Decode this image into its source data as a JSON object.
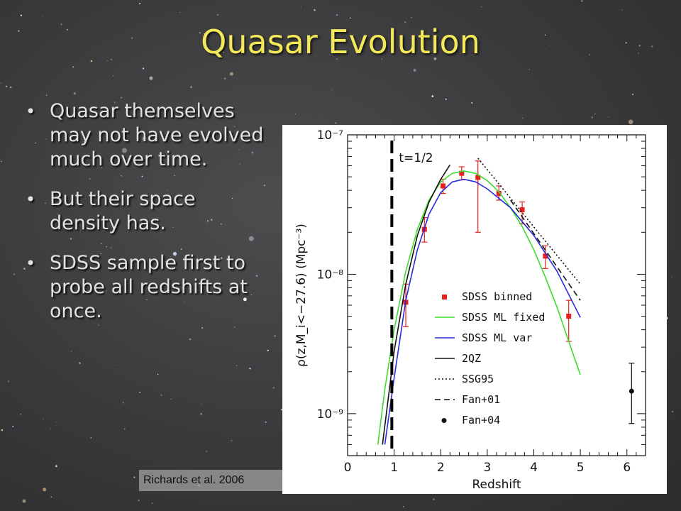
{
  "slide": {
    "title": "Quasar Evolution",
    "bullets": [
      "Quasar themselves may not have evolved much over time.",
      "But their space density has.",
      "SDSS sample first to probe all redshifts at once."
    ],
    "bullet_glyph": "•",
    "citation": "Richards et al. 2006",
    "colors": {
      "title": "#f2e85a",
      "text": "#e2e2e2",
      "sdss_binned": "#e8201c",
      "ml_fixed": "#3ddc2e",
      "ml_var": "#2a2ad8"
    }
  },
  "chart_data": {
    "type": "line",
    "xlabel": "Redshift",
    "ylabel": "ρ(z,M_i<−27.6)  (Mpc⁻³)",
    "xlim": [
      0,
      6.4
    ],
    "ylim": [
      5e-10,
      1e-07
    ],
    "yscale": "log",
    "x_ticks": [
      "0",
      "1",
      "2",
      "3",
      "4",
      "5",
      "6"
    ],
    "y_ticks": [
      {
        "value": 1e-07,
        "label": "10⁻⁷"
      },
      {
        "value": 1e-08,
        "label": "10⁻⁸"
      },
      {
        "value": 1e-09,
        "label": "10⁻⁹"
      }
    ],
    "annotation": {
      "label": "t=1/2",
      "x": 0.95
    },
    "legend_position": "bottom-right",
    "series": [
      {
        "name": "SDSS binned",
        "style": "points-errorbars",
        "color": "#e8201c",
        "points": [
          {
            "x": 1.25,
            "y": 6.3e-09,
            "lo": 4.2e-09,
            "hi": 8.5e-09
          },
          {
            "x": 1.65,
            "y": 2.1e-08,
            "lo": 1.7e-08,
            "hi": 2.55e-08
          },
          {
            "x": 2.05,
            "y": 4.3e-08,
            "lo": 3.8e-08,
            "hi": 4.8e-08
          },
          {
            "x": 2.45,
            "y": 5.3e-08,
            "lo": 4.75e-08,
            "hi": 5.9e-08
          },
          {
            "x": 2.8,
            "y": 4.95e-08,
            "lo": 2e-08,
            "hi": 6.5e-08
          },
          {
            "x": 3.25,
            "y": 3.8e-08,
            "lo": 3.4e-08,
            "hi": 4.3e-08
          },
          {
            "x": 3.75,
            "y": 2.9e-08,
            "lo": 2.3e-08,
            "hi": 3.3e-08
          },
          {
            "x": 4.25,
            "y": 1.35e-08,
            "lo": 1.1e-08,
            "hi": 1.6e-08
          },
          {
            "x": 4.75,
            "y": 5e-09,
            "lo": 3.3e-09,
            "hi": 6.5e-09
          }
        ]
      },
      {
        "name": "SDSS ML fixed",
        "style": "solid",
        "color": "#3ddc2e",
        "points": [
          [
            0.65,
            6e-10
          ],
          [
            0.8,
            1.5e-09
          ],
          [
            1.0,
            4e-09
          ],
          [
            1.25,
            1.05e-08
          ],
          [
            1.5,
            2.1e-08
          ],
          [
            1.75,
            3.4e-08
          ],
          [
            2.0,
            4.6e-08
          ],
          [
            2.25,
            5.3e-08
          ],
          [
            2.5,
            5.5e-08
          ],
          [
            2.75,
            5.3e-08
          ],
          [
            3.0,
            4.7e-08
          ],
          [
            3.25,
            3.9e-08
          ],
          [
            3.5,
            3e-08
          ],
          [
            3.75,
            2.2e-08
          ],
          [
            4.0,
            1.5e-08
          ],
          [
            4.25,
            9.5e-09
          ],
          [
            4.5,
            5.8e-09
          ],
          [
            4.75,
            3.3e-09
          ],
          [
            5.0,
            1.9e-09
          ]
        ]
      },
      {
        "name": "SDSS ML var",
        "style": "solid",
        "color": "#2a2ad8",
        "points": [
          [
            0.8,
            6e-10
          ],
          [
            1.0,
            1.8e-09
          ],
          [
            1.25,
            6.5e-09
          ],
          [
            1.5,
            1.5e-08
          ],
          [
            1.75,
            2.7e-08
          ],
          [
            2.0,
            3.85e-08
          ],
          [
            2.25,
            4.6e-08
          ],
          [
            2.5,
            4.8e-08
          ],
          [
            2.75,
            4.6e-08
          ],
          [
            3.0,
            4.1e-08
          ],
          [
            3.5,
            3e-08
          ],
          [
            4.0,
            1.9e-08
          ],
          [
            4.5,
            1.05e-08
          ],
          [
            5.0,
            4.9e-09
          ]
        ]
      },
      {
        "name": "2QZ",
        "style": "solid",
        "color": "#111111",
        "points": [
          [
            0.75,
            6e-10
          ],
          [
            1.0,
            2.8e-09
          ],
          [
            1.25,
            8.5e-09
          ],
          [
            1.5,
            1.9e-08
          ],
          [
            1.75,
            3.3e-08
          ],
          [
            2.0,
            4.8e-08
          ],
          [
            2.2,
            6.1e-08
          ]
        ]
      },
      {
        "name": "SSG95",
        "style": "dotted",
        "color": "#111111",
        "points": [
          [
            2.8,
            6.8e-08
          ],
          [
            5.0,
            8.5e-09
          ]
        ]
      },
      {
        "name": "Fan+01",
        "style": "dashed",
        "color": "#111111",
        "points": [
          [
            3.5,
            3.4e-08
          ],
          [
            5.0,
            6.5e-09
          ]
        ]
      },
      {
        "name": "Fan+04",
        "style": "point-errorbar",
        "color": "#111111",
        "points": [
          {
            "x": 6.1,
            "y": 1.45e-09,
            "lo": 8.5e-10,
            "hi": 2.3e-09
          }
        ]
      }
    ]
  }
}
